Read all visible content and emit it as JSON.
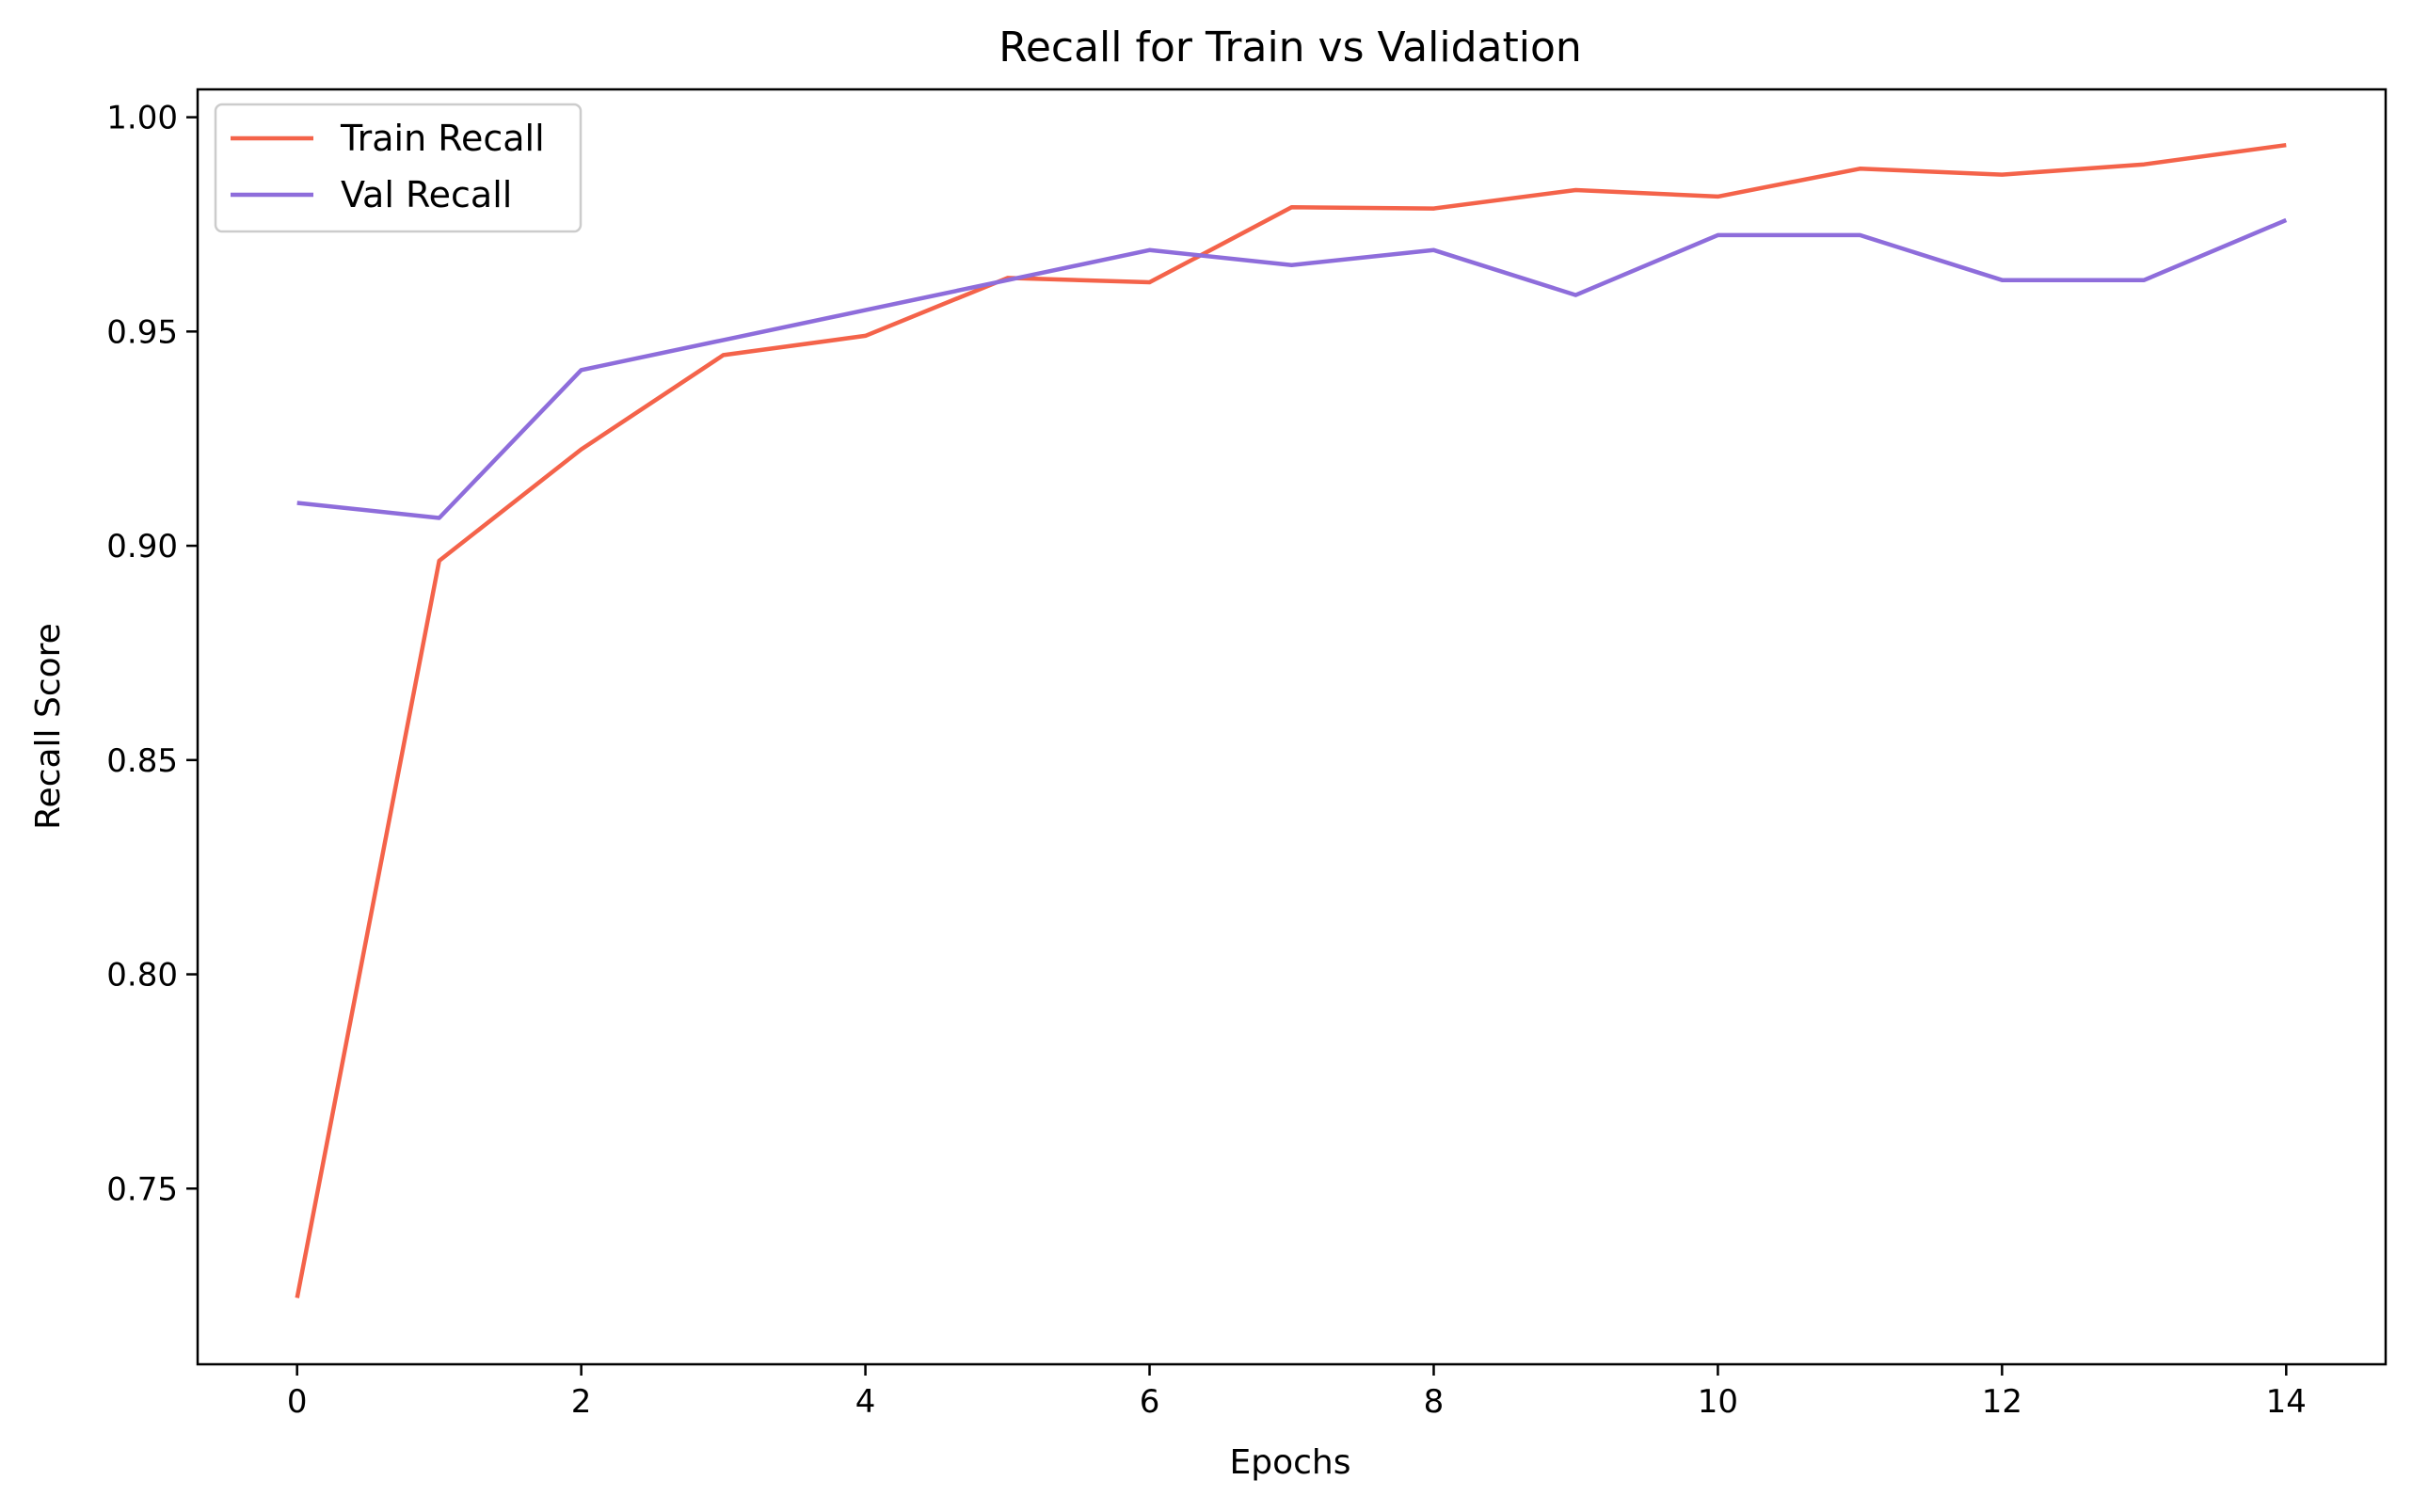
{
  "chart_data": {
    "type": "line",
    "title": "Recall for Train vs Validation",
    "xlabel": "Epochs",
    "ylabel": "Recall Score",
    "x": [
      0,
      1,
      2,
      3,
      4,
      5,
      6,
      7,
      8,
      9,
      10,
      11,
      12,
      13,
      14
    ],
    "xlim": [
      -0.7,
      14.7
    ],
    "ylim": [
      0.709,
      1.0065
    ],
    "xticks": [
      0,
      2,
      4,
      6,
      8,
      10,
      12,
      14
    ],
    "xtick_labels": [
      "0",
      "2",
      "4",
      "6",
      "8",
      "10",
      "12",
      "14"
    ],
    "yticks": [
      0.75,
      0.8,
      0.85,
      0.9,
      0.95,
      1.0
    ],
    "ytick_labels": [
      "0.75",
      "0.80",
      "0.85",
      "0.90",
      "0.95",
      "1.00"
    ],
    "grid": false,
    "legend_position": "top-left",
    "series": [
      {
        "name": "Train Recall",
        "color": "#f4634a",
        "values": [
          0.7245,
          0.8965,
          0.9225,
          0.9445,
          0.949,
          0.9625,
          0.9615,
          0.979,
          0.9787,
          0.983,
          0.9815,
          0.988,
          0.9866,
          0.989,
          0.9935
        ]
      },
      {
        "name": "Val Recall",
        "color": "#8e6ddb",
        "values": [
          0.91,
          0.9065,
          0.941,
          0.948,
          0.955,
          0.962,
          0.969,
          0.9655,
          0.969,
          0.9585,
          0.9725,
          0.9725,
          0.962,
          0.962,
          0.976
        ]
      }
    ]
  }
}
